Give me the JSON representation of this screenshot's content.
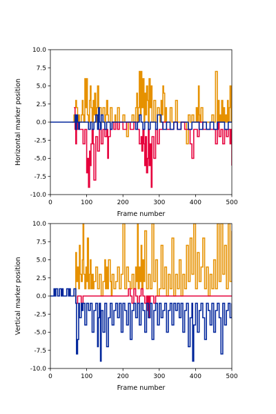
{
  "chart_data": [
    {
      "type": "line",
      "xlabel": "Frame number",
      "ylabel": "Horizontal marker position",
      "xlim": [
        0,
        500
      ],
      "ylim": [
        -10.0,
        10.0
      ],
      "x_ticks": [
        "0",
        "100",
        "200",
        "300",
        "400",
        "500"
      ],
      "y_ticks": [
        "-10.0",
        "-7.5",
        "-5.0",
        "-2.5",
        "0.0",
        "2.5",
        "5.0",
        "7.5",
        "10.0"
      ],
      "grid": false,
      "series": [
        {
          "color": "#E69100",
          "x": [
            60,
            65,
            68,
            70,
            72,
            75,
            78,
            80,
            85,
            88,
            90,
            92,
            95,
            98,
            100,
            102,
            105,
            108,
            110,
            112,
            115,
            118,
            120,
            122,
            125,
            128,
            130,
            133,
            135,
            140,
            145,
            150,
            152,
            155,
            158,
            160,
            165,
            170,
            175,
            178,
            180,
            185,
            190,
            195,
            200,
            205,
            210,
            215,
            220,
            225,
            230,
            235,
            238,
            240,
            242,
            245,
            248,
            250,
            252,
            255,
            258,
            260,
            262,
            265,
            268,
            270,
            272,
            275,
            278,
            280,
            285,
            290,
            295,
            300,
            302,
            305,
            308,
            310,
            312,
            315,
            318,
            320,
            325,
            330,
            335,
            340,
            345,
            350,
            355,
            360,
            365,
            370,
            375,
            380,
            385,
            390,
            395,
            400,
            402,
            405,
            408,
            410,
            412,
            415,
            420,
            425,
            430,
            435,
            440,
            445,
            450,
            455,
            460,
            462,
            465,
            468,
            470,
            472,
            475,
            478,
            480,
            483,
            485,
            488,
            490,
            493,
            495,
            498
          ],
          "y": [
            0,
            1,
            2,
            3,
            2,
            0,
            1,
            0,
            1,
            3,
            1,
            0,
            6,
            2,
            6,
            1,
            0,
            3,
            5,
            2,
            0,
            3,
            1,
            4,
            0,
            2,
            5,
            1,
            2,
            0,
            2,
            0,
            1,
            3,
            1,
            0,
            2,
            0,
            0,
            1,
            0,
            2,
            0,
            0,
            1,
            0,
            -2,
            0,
            0,
            1,
            0,
            2,
            4,
            0,
            2,
            7,
            1,
            7,
            2,
            6,
            0,
            4,
            1,
            5,
            3,
            0,
            6,
            2,
            5,
            0,
            3,
            0,
            2,
            1,
            0,
            3,
            1,
            5,
            4,
            0,
            2,
            0,
            0,
            2,
            0,
            0,
            3,
            0,
            0,
            0,
            0,
            0,
            -3,
            1,
            0,
            1,
            0,
            0,
            2,
            0,
            5,
            1,
            0,
            2,
            0,
            0,
            0,
            0,
            0,
            1,
            0,
            7,
            0,
            3,
            0,
            1,
            0,
            3,
            0,
            2,
            0,
            1,
            0,
            3,
            0,
            2,
            5,
            0
          ]
        },
        {
          "color": "#E6003C",
          "x": [
            65,
            68,
            70,
            72,
            75,
            80,
            85,
            90,
            95,
            100,
            102,
            105,
            108,
            110,
            112,
            115,
            118,
            120,
            125,
            130,
            135,
            140,
            145,
            150,
            155,
            158,
            160,
            165,
            170,
            175,
            180,
            185,
            190,
            195,
            200,
            210,
            220,
            230,
            240,
            245,
            250,
            252,
            255,
            258,
            260,
            262,
            265,
            268,
            270,
            272,
            275,
            278,
            280,
            285,
            290,
            295,
            300,
            310,
            320,
            330,
            340,
            350,
            360,
            370,
            380,
            385,
            390,
            395,
            400,
            405,
            410,
            420,
            430,
            440,
            450,
            455,
            460,
            462,
            465,
            470,
            475,
            480,
            485,
            490,
            495,
            498,
            500
          ],
          "y": [
            2,
            -1,
            -3,
            -1,
            0,
            -1,
            -1,
            -3,
            -1,
            -7,
            -5,
            -9,
            -4,
            -6,
            -3,
            -1,
            -3,
            -8,
            -2,
            -4,
            -1,
            -3,
            -1,
            -2,
            -1,
            -5,
            -2,
            -1,
            0,
            -1,
            0,
            -1,
            0,
            0,
            -1,
            0,
            -1,
            0,
            -1,
            -3,
            -2,
            -4,
            -1,
            -3,
            -6,
            -2,
            -7,
            -5,
            -1,
            -6,
            -3,
            -9,
            -2,
            -5,
            -1,
            -3,
            -1,
            0,
            -1,
            -1,
            0,
            -1,
            0,
            -1,
            -1,
            -3,
            -5,
            -1,
            -1,
            -2,
            0,
            -1,
            -1,
            -1,
            -1,
            -3,
            -1,
            0,
            -2,
            -1,
            -3,
            -1,
            -2,
            -1,
            -3,
            -1,
            -6
          ]
        },
        {
          "color": "#00259B",
          "x": [
            0,
            60,
            65,
            68,
            70,
            72,
            75,
            78,
            80,
            100,
            105,
            110,
            115,
            120,
            125,
            130,
            133,
            135,
            138,
            140,
            145,
            150,
            155,
            160,
            165,
            170,
            200,
            230,
            235,
            240,
            245,
            250,
            255,
            260,
            265,
            270,
            275,
            280,
            290,
            295,
            300,
            305,
            310,
            320,
            330,
            340,
            350,
            360,
            370,
            380,
            390,
            400,
            410,
            420,
            430,
            440,
            450,
            460,
            470,
            480,
            490,
            500
          ],
          "y": [
            0,
            0,
            0,
            1,
            -1,
            1,
            0,
            -1,
            0,
            0,
            -1,
            0,
            -1,
            0,
            1,
            -1,
            2,
            0,
            -1,
            1,
            0,
            -1,
            0,
            0,
            -1,
            0,
            0,
            0,
            -1,
            0,
            1,
            0,
            -1,
            0,
            0,
            -1,
            0,
            0,
            -1,
            1,
            1,
            0,
            -1,
            0,
            -1,
            0,
            -1,
            0,
            0,
            -1,
            0,
            0,
            -1,
            0,
            -1,
            0,
            -1,
            0,
            0,
            -1,
            0,
            0
          ]
        }
      ]
    },
    {
      "type": "line",
      "xlabel": "Frame number",
      "ylabel": "Vertical marker position",
      "xlim": [
        0,
        500
      ],
      "ylim": [
        -10.0,
        10.0
      ],
      "x_ticks": [
        "0",
        "100",
        "200",
        "300",
        "400",
        "500"
      ],
      "y_ticks": [
        "-10.0",
        "-7.5",
        "-5.0",
        "-2.5",
        "0.0",
        "2.5",
        "5.0",
        "7.5",
        "10.0"
      ],
      "grid": false,
      "series": [
        {
          "color": "#E69100",
          "x": [
            65,
            70,
            72,
            75,
            78,
            80,
            82,
            85,
            88,
            90,
            92,
            95,
            98,
            100,
            102,
            105,
            108,
            110,
            112,
            115,
            118,
            120,
            125,
            130,
            135,
            140,
            145,
            150,
            152,
            155,
            158,
            160,
            165,
            168,
            170,
            175,
            180,
            185,
            190,
            195,
            200,
            205,
            210,
            215,
            220,
            225,
            230,
            235,
            238,
            240,
            242,
            245,
            248,
            250,
            252,
            255,
            258,
            260,
            265,
            270,
            275,
            280,
            285,
            290,
            295,
            300,
            305,
            310,
            315,
            320,
            325,
            330,
            335,
            340,
            345,
            350,
            355,
            360,
            365,
            370,
            375,
            380,
            385,
            390,
            395,
            400,
            405,
            410,
            415,
            420,
            425,
            430,
            435,
            440,
            445,
            450,
            455,
            460,
            465,
            470,
            475,
            480,
            485,
            490,
            495,
            500
          ],
          "y": [
            0,
            6,
            2,
            4,
            1,
            7,
            3,
            2,
            5,
            10,
            3,
            1,
            4,
            2,
            8,
            1,
            3,
            5,
            1,
            3,
            1,
            2,
            4,
            1,
            3,
            0,
            2,
            5,
            1,
            4,
            1,
            5,
            2,
            0,
            3,
            1,
            2,
            4,
            1,
            3,
            10,
            1,
            4,
            2,
            1,
            3,
            1,
            4,
            2,
            10,
            1,
            4,
            2,
            7,
            1,
            5,
            2,
            9,
            1,
            3,
            1,
            10,
            2,
            5,
            0,
            1,
            7,
            1,
            4,
            0,
            3,
            1,
            8,
            0,
            3,
            1,
            5,
            0,
            3,
            1,
            7,
            2,
            8,
            3,
            10,
            1,
            6,
            2,
            4,
            8,
            1,
            4,
            0,
            3,
            1,
            5,
            1,
            10,
            2,
            10,
            3,
            7,
            1,
            10,
            2,
            9
          ]
        },
        {
          "color": "#E6003C",
          "x": [
            68,
            70,
            75,
            80,
            85,
            90,
            100,
            110,
            120,
            130,
            140,
            150,
            160,
            170,
            180,
            190,
            200,
            210,
            215,
            220,
            225,
            230,
            235,
            240,
            245,
            250,
            255,
            260,
            265,
            268,
            270,
            272,
            275,
            280,
            285,
            290,
            300,
            320,
            340,
            360,
            380,
            400,
            420,
            440,
            460,
            480,
            500
          ],
          "y": [
            0,
            -1,
            0,
            0,
            -1,
            0,
            0,
            0,
            0,
            0,
            0,
            0,
            0,
            0,
            0,
            0,
            0,
            0,
            1,
            0,
            -1,
            1,
            0,
            -1,
            0,
            1,
            0,
            -1,
            0,
            -2,
            0,
            -3,
            0,
            0,
            -1,
            0,
            0,
            0,
            0,
            0,
            0,
            0,
            0,
            0,
            0,
            0,
            0
          ]
        },
        {
          "color": "#00259B",
          "x": [
            0,
            10,
            12,
            15,
            20,
            25,
            30,
            32,
            35,
            40,
            45,
            50,
            52,
            55,
            60,
            65,
            70,
            72,
            75,
            78,
            80,
            85,
            88,
            90,
            95,
            100,
            105,
            110,
            115,
            120,
            125,
            130,
            132,
            135,
            138,
            140,
            145,
            150,
            155,
            160,
            165,
            170,
            175,
            180,
            185,
            190,
            195,
            200,
            205,
            210,
            215,
            220,
            225,
            230,
            235,
            240,
            245,
            250,
            255,
            260,
            265,
            270,
            275,
            280,
            285,
            290,
            295,
            300,
            305,
            310,
            315,
            320,
            325,
            330,
            335,
            340,
            345,
            350,
            355,
            360,
            365,
            370,
            375,
            380,
            385,
            390,
            392,
            395,
            400,
            405,
            410,
            415,
            420,
            425,
            430,
            435,
            440,
            445,
            450,
            455,
            460,
            465,
            470,
            475,
            480,
            485,
            490,
            495,
            500
          ],
          "y": [
            0,
            1,
            0,
            1,
            0,
            1,
            0,
            1,
            0,
            0,
            1,
            0,
            1,
            0,
            0,
            1,
            -1,
            -8,
            -6,
            -1,
            -3,
            -1,
            -2,
            -1,
            -4,
            -1,
            -2,
            -1,
            -5,
            -2,
            -1,
            -7,
            -3,
            -1,
            -9,
            -2,
            -5,
            -1,
            -7,
            -3,
            -1,
            -4,
            -2,
            -1,
            -3,
            -1,
            -5,
            -1,
            -2,
            -4,
            -1,
            -6,
            -2,
            -1,
            -3,
            -1,
            -4,
            -1,
            -2,
            -5,
            -1,
            -3,
            -1,
            -6,
            -2,
            -1,
            -4,
            -1,
            -3,
            -2,
            -1,
            -5,
            -2,
            -1,
            -4,
            -1,
            -2,
            -1,
            -3,
            -1,
            -5,
            -2,
            -1,
            -7,
            -3,
            -1,
            -9,
            -4,
            -1,
            -5,
            -2,
            -1,
            -3,
            -6,
            -1,
            -2,
            -4,
            -1,
            -5,
            -2,
            -1,
            -3,
            -8,
            -1,
            -4,
            -2,
            -1,
            -3,
            -1
          ]
        }
      ]
    }
  ]
}
